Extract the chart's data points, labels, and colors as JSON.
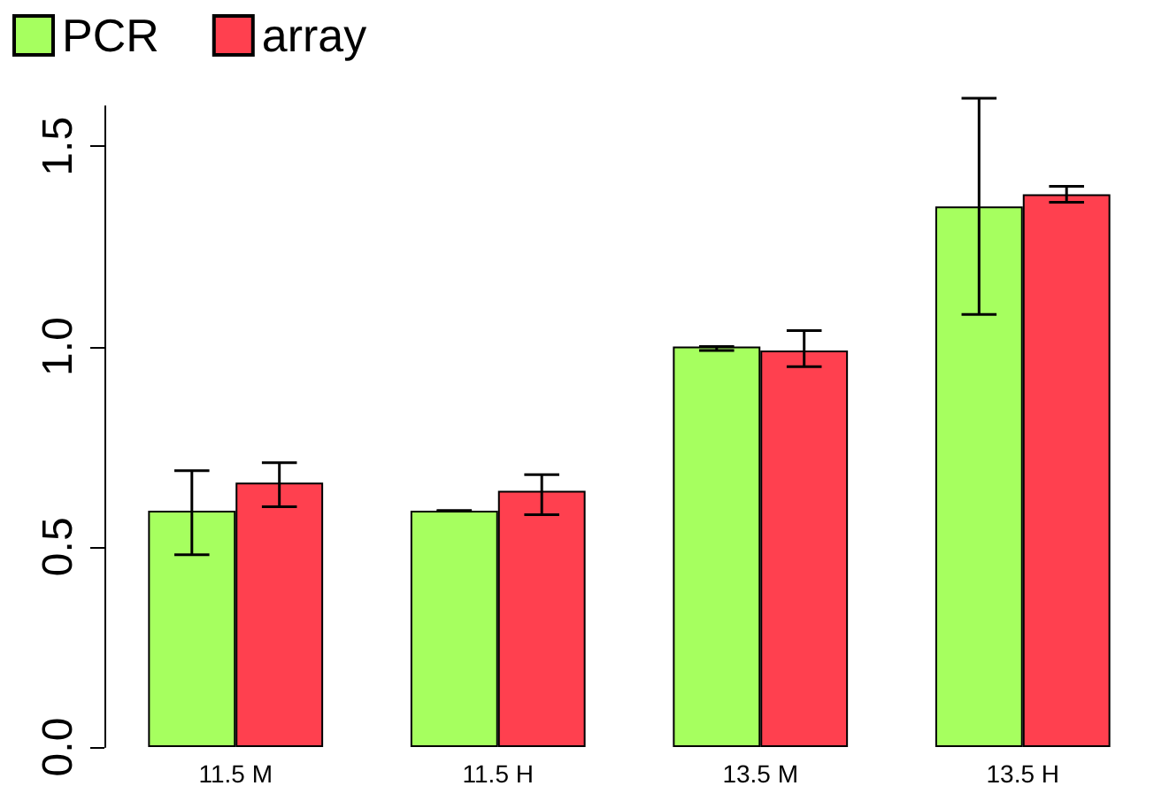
{
  "chart_data": {
    "type": "bar",
    "categories": [
      "11.5 M",
      "11.5 H",
      "13.5 M",
      "13.5 H"
    ],
    "series": [
      {
        "name": "PCR",
        "color": "#a6ff5f",
        "values": [
          0.59,
          0.59,
          1.0,
          1.35
        ],
        "errors": [
          [
            0.48,
            0.69
          ],
          [
            0.59,
            0.59
          ],
          [
            0.99,
            1.0
          ],
          [
            1.08,
            1.62
          ]
        ]
      },
      {
        "name": "array",
        "color": "#ff404f",
        "values": [
          0.66,
          0.64,
          0.99,
          1.38
        ],
        "errors": [
          [
            0.6,
            0.71
          ],
          [
            0.58,
            0.68
          ],
          [
            0.95,
            1.04
          ],
          [
            1.36,
            1.4
          ]
        ]
      }
    ],
    "ylim": [
      0,
      1.6
    ],
    "yticks": [
      {
        "value": 0,
        "label": "0.0"
      },
      {
        "value": 0.5,
        "label": "0.5"
      },
      {
        "value": 1,
        "label": "1.0"
      },
      {
        "value": 1.5,
        "label": "1.5"
      }
    ],
    "grid": false,
    "legend": "top left"
  }
}
